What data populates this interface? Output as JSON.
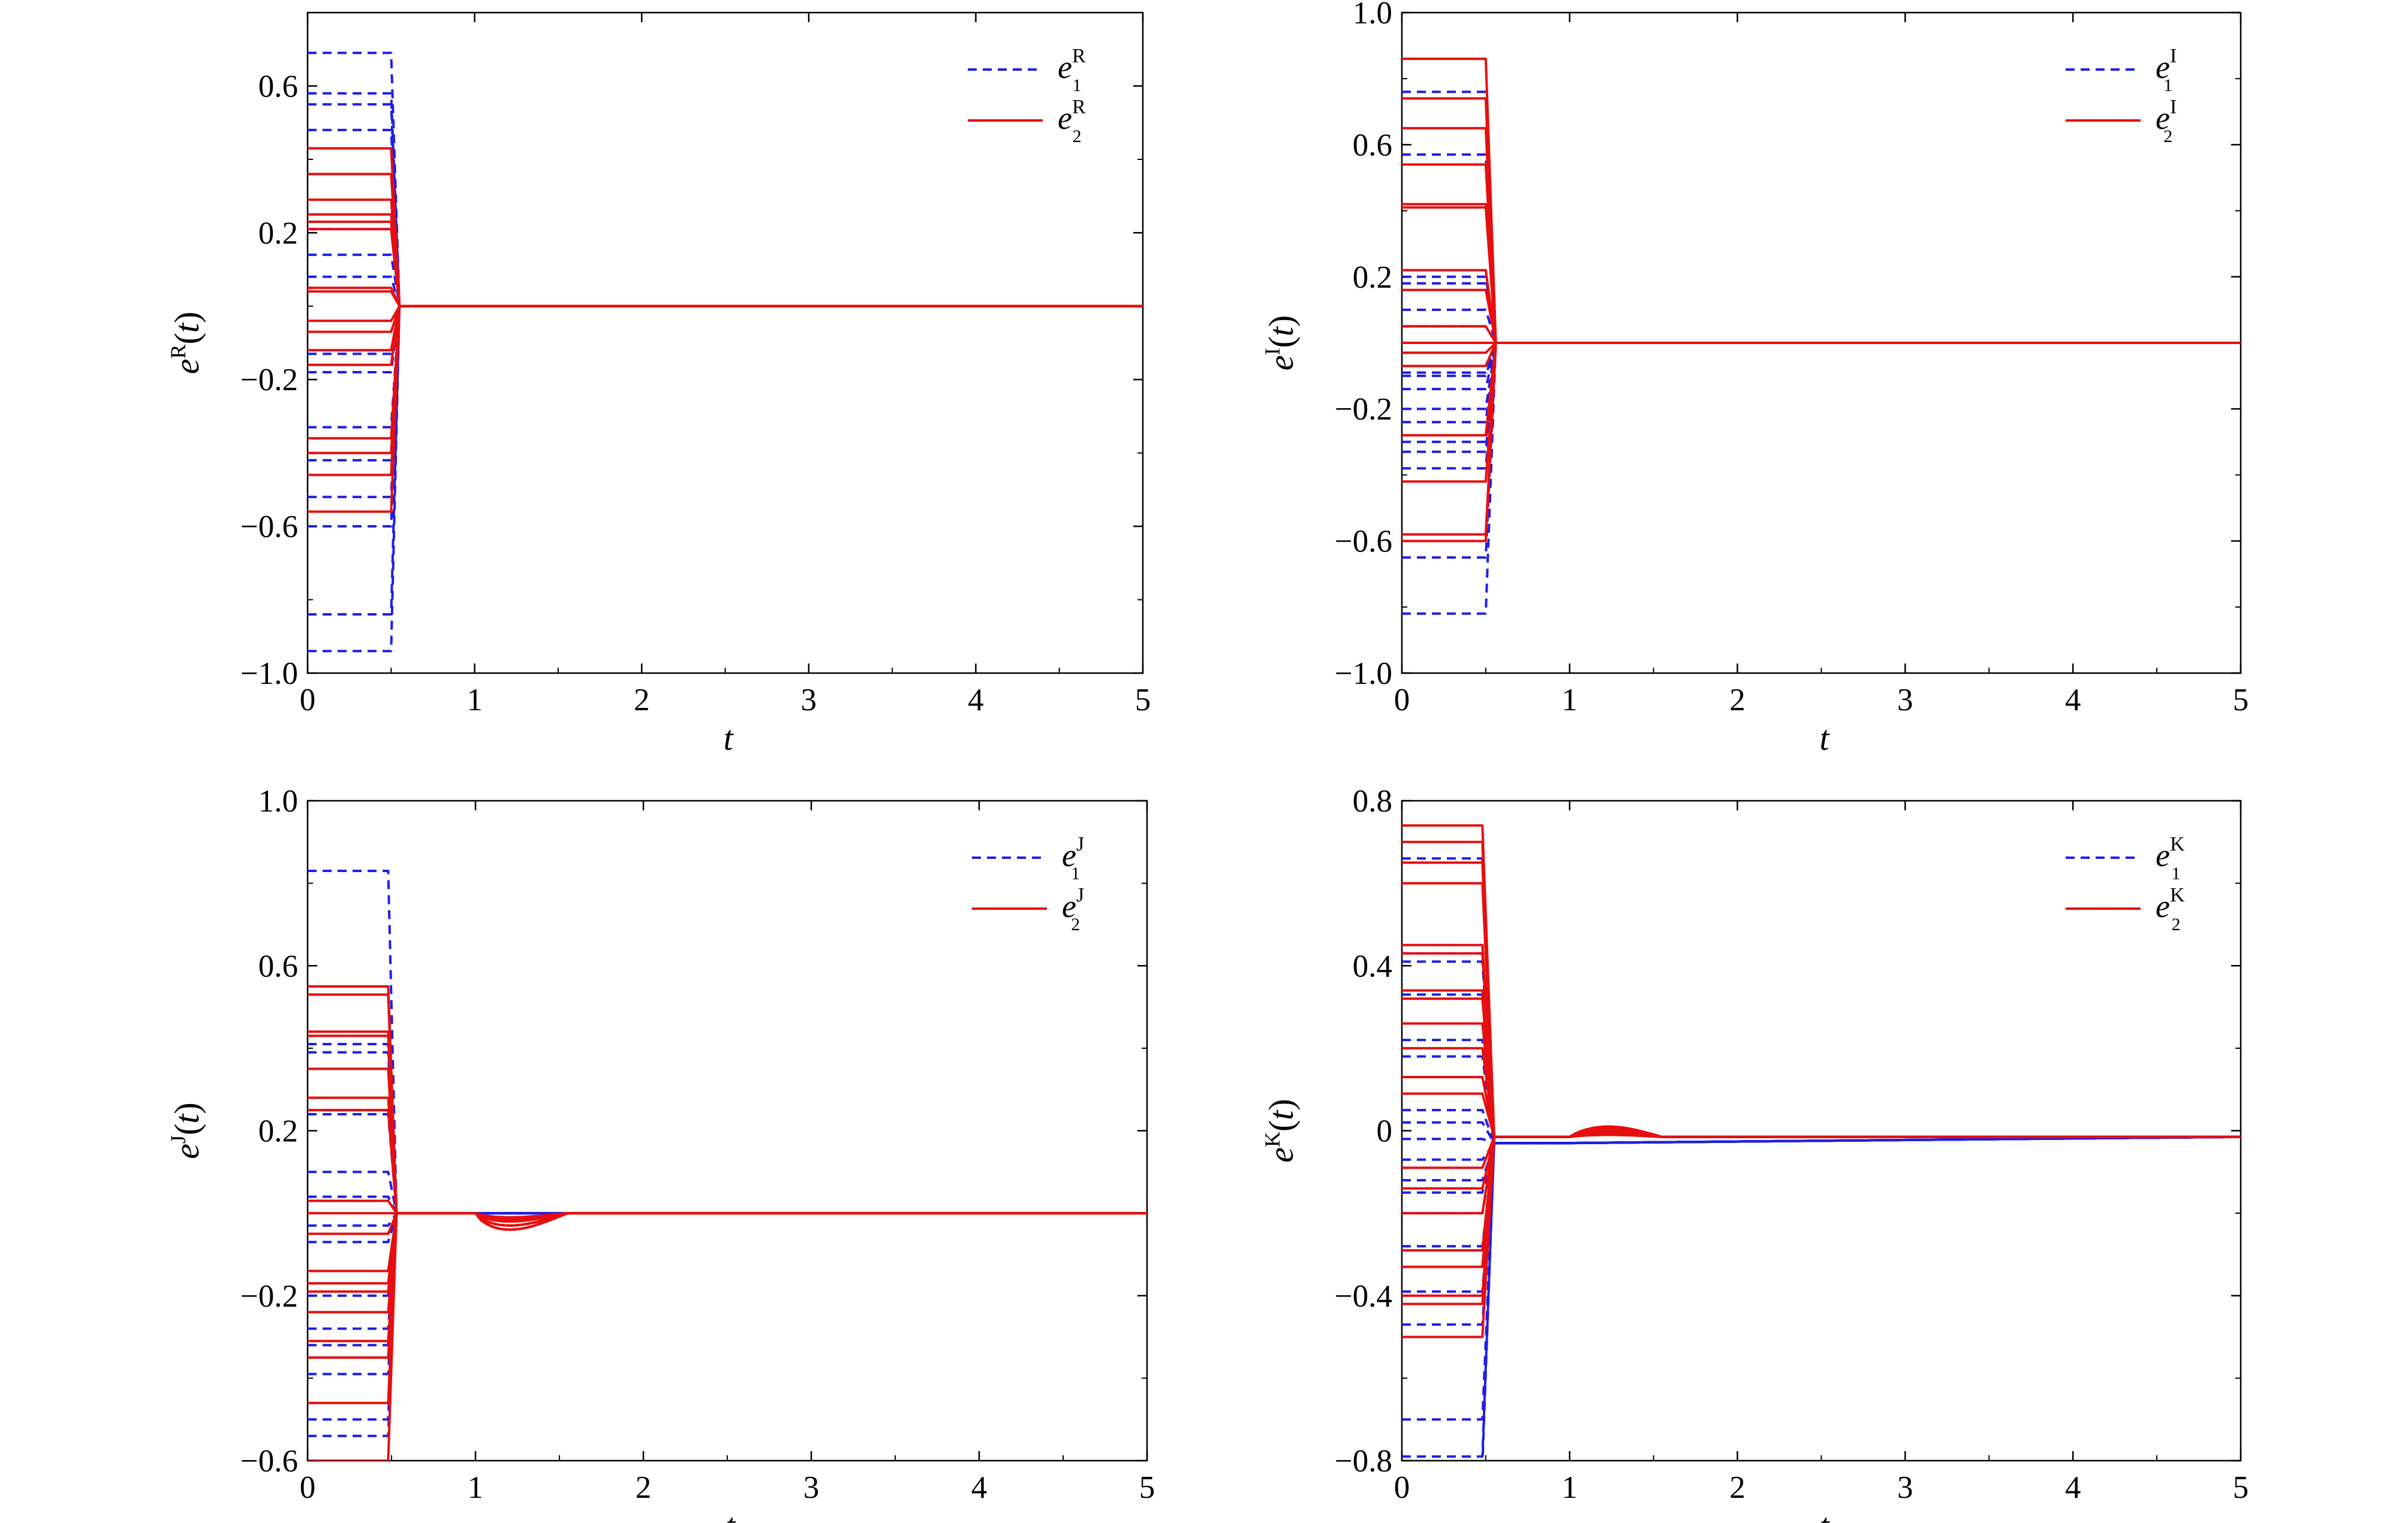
{
  "chart_data": [
    {
      "type": "line",
      "panel": "top-left",
      "xlabel": "t",
      "ylabel": "e^R(t)",
      "ylabel_base": "e",
      "ylabel_sup": "R",
      "ylabel_arg": "t",
      "xlim": [
        0,
        5
      ],
      "ylim": [
        -1.0,
        0.8
      ],
      "xticks": [
        0,
        1,
        2,
        3,
        4,
        5
      ],
      "xtick_labels": [
        "0",
        "1",
        "2",
        "3",
        "4",
        "5"
      ],
      "yticks": [
        -1.0,
        -0.6,
        -0.2,
        0.2,
        0.6
      ],
      "ytick_labels": [
        "−1.0",
        "−0.6",
        "−0.2",
        "0.2",
        "0.6"
      ],
      "grid": false,
      "legend_position": "top-right",
      "legend": [
        {
          "base": "e",
          "sub": "1",
          "sup": "R",
          "style": "dashed",
          "color": "#1f1fe6"
        },
        {
          "base": "e",
          "sub": "2",
          "sup": "R",
          "style": "solid",
          "color": "#e60f0f"
        }
      ],
      "series": [
        {
          "name": "e1R",
          "color": "#1f1fe6",
          "style": "dashed",
          "switch_t": 0.5,
          "end_t": 0.55,
          "settle": 0.0,
          "tail_end": 1.0,
          "post": 0.0,
          "initial": [
            0.69,
            0.58,
            0.55,
            0.48,
            0.21,
            0.14,
            0.08,
            -0.13,
            -0.18,
            -0.33,
            -0.42,
            -0.52,
            -0.6,
            -0.84,
            -0.94
          ]
        },
        {
          "name": "e2R",
          "color": "#e60f0f",
          "style": "solid",
          "switch_t": 0.5,
          "end_t": 0.55,
          "settle": 0.0,
          "tail_end": 1.0,
          "post": 0.0,
          "initial": [
            0.43,
            0.36,
            0.29,
            0.25,
            0.23,
            0.21,
            0.05,
            0.04,
            -0.04,
            -0.07,
            -0.12,
            -0.16,
            -0.36,
            -0.4,
            -0.46,
            -0.56
          ]
        }
      ]
    },
    {
      "type": "line",
      "panel": "top-right",
      "xlabel": "t",
      "ylabel": "e^I(t)",
      "ylabel_base": "e",
      "ylabel_sup": "I",
      "ylabel_arg": "t",
      "xlim": [
        0,
        5
      ],
      "ylim": [
        -1.0,
        1.0
      ],
      "xticks": [
        0,
        1,
        2,
        3,
        4,
        5
      ],
      "xtick_labels": [
        "0",
        "1",
        "2",
        "3",
        "4",
        "5"
      ],
      "yticks": [
        -1.0,
        -0.6,
        -0.2,
        0.2,
        0.6,
        1.0
      ],
      "ytick_labels": [
        "−1.0",
        "−0.6",
        "−0.2",
        "0.2",
        "0.6",
        "1.0"
      ],
      "grid": false,
      "legend_position": "top-right",
      "legend": [
        {
          "base": "e",
          "sub": "1",
          "sup": "I",
          "style": "dashed",
          "color": "#1f1fe6"
        },
        {
          "base": "e",
          "sub": "2",
          "sup": "I",
          "style": "solid",
          "color": "#e60f0f"
        }
      ],
      "series": [
        {
          "name": "e1I",
          "color": "#1f1fe6",
          "style": "dashed",
          "switch_t": 0.5,
          "end_t": 0.56,
          "settle": 0.0,
          "tail_end": 1.0,
          "post": 0.0,
          "initial": [
            0.76,
            0.57,
            0.2,
            0.18,
            0.1,
            0.05,
            -0.09,
            -0.1,
            -0.14,
            -0.2,
            -0.24,
            -0.3,
            -0.33,
            -0.38,
            -0.65,
            -0.82
          ]
        },
        {
          "name": "e2I",
          "color": "#e60f0f",
          "style": "solid",
          "switch_t": 0.5,
          "end_t": 0.56,
          "settle": 0.0,
          "tail_end": 1.0,
          "post": 0.0,
          "initial": [
            0.86,
            0.74,
            0.65,
            0.54,
            0.42,
            0.41,
            0.22,
            0.16,
            0.05,
            0.0,
            -0.03,
            -0.07,
            -0.28,
            -0.42,
            -0.58,
            -0.6
          ]
        }
      ]
    },
    {
      "type": "line",
      "panel": "bottom-left",
      "xlabel": "t",
      "ylabel": "e^J(t)",
      "ylabel_base": "e",
      "ylabel_sup": "J",
      "ylabel_arg": "t",
      "xlim": [
        0,
        5
      ],
      "ylim": [
        -0.6,
        1.0
      ],
      "xticks": [
        0,
        1,
        2,
        3,
        4,
        5
      ],
      "xtick_labels": [
        "0",
        "1",
        "2",
        "3",
        "4",
        "5"
      ],
      "yticks": [
        -0.6,
        -0.2,
        0.2,
        0.6,
        1.0
      ],
      "ytick_labels": [
        "−0.6",
        "−0.2",
        "0.2",
        "0.6",
        "1.0"
      ],
      "grid": false,
      "legend_position": "top-right",
      "legend": [
        {
          "base": "e",
          "sub": "1",
          "sup": "J",
          "style": "dashed",
          "color": "#1f1fe6"
        },
        {
          "base": "e",
          "sub": "2",
          "sup": "J",
          "style": "solid",
          "color": "#e60f0f"
        }
      ],
      "series": [
        {
          "name": "e1J",
          "color": "#1f1fe6",
          "style": "dashed",
          "switch_t": 0.48,
          "end_t": 0.53,
          "settle": 0.0,
          "tail_end": 1.0,
          "post": 0.0,
          "initial": [
            0.83,
            0.41,
            0.39,
            0.25,
            0.24,
            0.1,
            0.04,
            -0.03,
            -0.07,
            -0.14,
            -0.2,
            -0.28,
            -0.32,
            -0.39,
            -0.5,
            -0.54
          ]
        },
        {
          "name": "e2J",
          "color": "#e60f0f",
          "style": "solid",
          "switch_t": 0.48,
          "end_t": 0.53,
          "settle": 0.0,
          "tail_end": 1.0,
          "post": 0.0,
          "dip": {
            "start": 1.0,
            "peak_t": 1.12,
            "end": 1.55,
            "depths": [
              -0.04,
              -0.03,
              -0.02,
              -0.015,
              -0.01
            ]
          },
          "initial": [
            0.55,
            0.53,
            0.44,
            0.43,
            0.35,
            0.28,
            0.25,
            0.03,
            0.0,
            -0.05,
            -0.14,
            -0.17,
            -0.19,
            -0.24,
            -0.31,
            -0.35,
            -0.46,
            -0.6
          ]
        }
      ]
    },
    {
      "type": "line",
      "panel": "bottom-right",
      "xlabel": "t",
      "ylabel": "e^K(t)",
      "ylabel_base": "e",
      "ylabel_sup": "K",
      "ylabel_arg": "t",
      "xlim": [
        0,
        5
      ],
      "ylim": [
        -0.8,
        0.8
      ],
      "xticks": [
        0,
        1,
        2,
        3,
        4,
        5
      ],
      "xtick_labels": [
        "0",
        "1",
        "2",
        "3",
        "4",
        "5"
      ],
      "yticks": [
        -0.8,
        -0.4,
        0.0,
        0.4,
        0.8
      ],
      "ytick_labels": [
        "−0.8",
        "−0.4",
        "0",
        "0.4",
        "0.8"
      ],
      "grid": false,
      "legend_position": "top-right",
      "legend": [
        {
          "base": "e",
          "sub": "1",
          "sup": "K",
          "style": "dashed",
          "color": "#1f1fe6"
        },
        {
          "base": "e",
          "sub": "2",
          "sup": "K",
          "style": "solid",
          "color": "#e60f0f"
        }
      ],
      "series": [
        {
          "name": "e1K",
          "color": "#1f1fe6",
          "style": "dashed",
          "switch_t": 0.48,
          "end_t": 0.55,
          "settle": -0.03,
          "tail_end": 1.0,
          "post": -0.015,
          "initial": [
            0.66,
            0.43,
            0.41,
            0.33,
            0.22,
            0.18,
            0.05,
            0.02,
            -0.02,
            -0.07,
            -0.12,
            -0.15,
            -0.2,
            -0.28,
            -0.39,
            -0.47,
            -0.7,
            -0.79,
            -0.81
          ]
        },
        {
          "name": "e2K",
          "color": "#e60f0f",
          "style": "solid",
          "switch_t": 0.48,
          "end_t": 0.55,
          "settle": -0.015,
          "tail_end": 1.0,
          "post": -0.015,
          "bump": {
            "start": 1.0,
            "peak_t": 1.2,
            "end": 1.55,
            "heights": [
              0.025,
              0.02,
              0.015,
              0.01,
              0.005
            ]
          },
          "initial": [
            0.74,
            0.7,
            0.65,
            0.6,
            0.45,
            0.43,
            0.34,
            0.32,
            0.26,
            0.2,
            0.13,
            0.09,
            -0.09,
            -0.14,
            -0.2,
            -0.29,
            -0.33,
            -0.4,
            -0.42,
            -0.5
          ]
        }
      ]
    }
  ]
}
